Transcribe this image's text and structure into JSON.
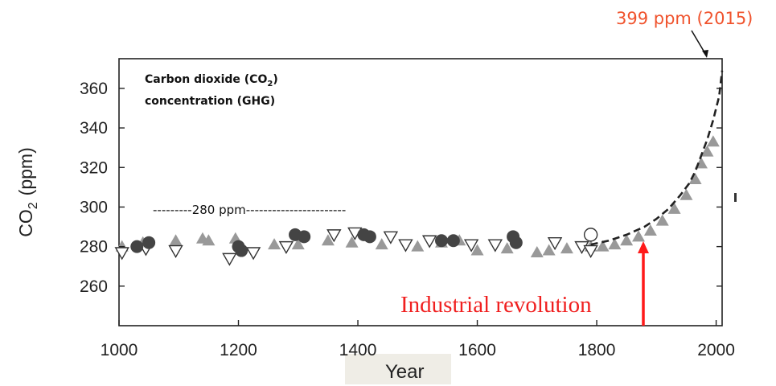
{
  "chart_data": {
    "type": "scatter",
    "title_line1": "Carbon dioxide (CO",
    "title_sub": "2",
    "title_line1_end": ")",
    "title_line2": "concentration (GHG)",
    "xlabel": "Year",
    "ylabel_main": "CO",
    "ylabel_sub": "2",
    "ylabel_unit": "(ppm)",
    "xlim": [
      1000,
      2010
    ],
    "ylim": [
      240,
      375
    ],
    "x_ticks": [
      1000,
      1200,
      1400,
      1600,
      1800,
      2000
    ],
    "y_ticks": [
      260,
      280,
      300,
      320,
      340,
      360
    ],
    "grid": false,
    "series": [
      {
        "marker": "triangle-up-filled",
        "color": "#999999",
        "points": [
          [
            1005,
            280
          ],
          [
            1040,
            282
          ],
          [
            1095,
            283
          ],
          [
            1140,
            284
          ],
          [
            1150,
            283
          ],
          [
            1195,
            284
          ],
          [
            1260,
            281
          ],
          [
            1300,
            281
          ],
          [
            1350,
            283
          ],
          [
            1390,
            282
          ],
          [
            1440,
            281
          ],
          [
            1500,
            280
          ],
          [
            1540,
            282
          ],
          [
            1570,
            283
          ],
          [
            1600,
            278
          ],
          [
            1650,
            279
          ],
          [
            1700,
            277
          ],
          [
            1720,
            278
          ],
          [
            1750,
            279
          ],
          [
            1790,
            280
          ],
          [
            1810,
            280
          ],
          [
            1830,
            281
          ],
          [
            1850,
            283
          ],
          [
            1870,
            285
          ],
          [
            1890,
            288
          ],
          [
            1910,
            293
          ],
          [
            1930,
            299
          ],
          [
            1950,
            306
          ],
          [
            1965,
            314
          ],
          [
            1975,
            322
          ],
          [
            1985,
            328
          ],
          [
            1995,
            333
          ]
        ]
      },
      {
        "marker": "triangle-down-open",
        "color": "#333333",
        "points": [
          [
            1005,
            277
          ],
          [
            1045,
            279
          ],
          [
            1095,
            278
          ],
          [
            1185,
            274
          ],
          [
            1225,
            277
          ],
          [
            1280,
            280
          ],
          [
            1360,
            286
          ],
          [
            1395,
            287
          ],
          [
            1455,
            285
          ],
          [
            1480,
            281
          ],
          [
            1520,
            283
          ],
          [
            1590,
            281
          ],
          [
            1630,
            281
          ],
          [
            1730,
            282
          ],
          [
            1775,
            280
          ],
          [
            1790,
            278
          ]
        ]
      },
      {
        "marker": "circle-filled",
        "color": "#444444",
        "points": [
          [
            1030,
            280
          ],
          [
            1050,
            282
          ],
          [
            1200,
            280
          ],
          [
            1205,
            278
          ],
          [
            1295,
            286
          ],
          [
            1310,
            285
          ],
          [
            1410,
            286
          ],
          [
            1420,
            285
          ],
          [
            1540,
            283
          ],
          [
            1560,
            283
          ],
          [
            1660,
            285
          ],
          [
            1665,
            282
          ]
        ]
      },
      {
        "marker": "circle-open",
        "color": "#333333",
        "points": [
          [
            1790,
            286
          ]
        ]
      },
      {
        "marker": "dashed-line",
        "color": "#222222",
        "points": [
          [
            1790,
            281
          ],
          [
            1820,
            283
          ],
          [
            1850,
            286
          ],
          [
            1880,
            290
          ],
          [
            1900,
            294
          ],
          [
            1920,
            299
          ],
          [
            1940,
            306
          ],
          [
            1955,
            312
          ],
          [
            1965,
            318
          ],
          [
            1975,
            326
          ],
          [
            1985,
            334
          ],
          [
            1995,
            344
          ],
          [
            2005,
            356
          ],
          [
            2010,
            369
          ]
        ]
      }
    ],
    "annotations": {
      "baseline_label": "---------280 ppm-----------------------",
      "latest_label": "399 ppm (2015)",
      "industrial_label": "Industrial revolution"
    }
  }
}
